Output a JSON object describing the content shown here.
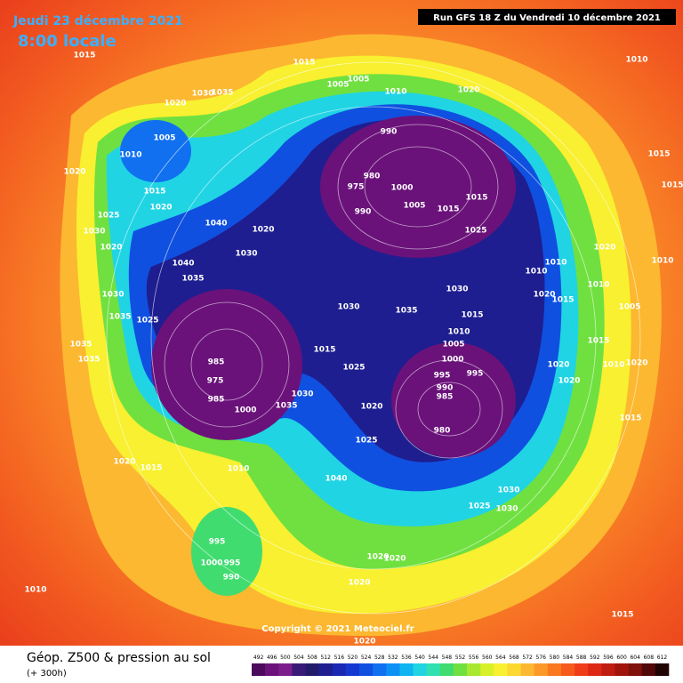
{
  "header": {
    "date": "Jeudi 23 décembre 2021",
    "time": "8:00 locale",
    "run": "Run GFS 18 Z du Vendredi 10 décembre 2021"
  },
  "footer": {
    "copyright": "Copyright © 2021 Meteociel.fr",
    "title": "Géop. Z500 & pression au sol",
    "lead": "(+ 300h)"
  },
  "pressure_labels": [
    1015,
    1015,
    1005,
    1005,
    1010,
    1020,
    1010,
    1020,
    1030,
    1035,
    1005,
    1010,
    990,
    1020,
    1015,
    1020,
    980,
    975,
    1000,
    990,
    1005,
    1015,
    1015,
    1015,
    1015,
    1025,
    1030,
    1020,
    1040,
    1020,
    1030,
    1025,
    1020,
    1040,
    1035,
    1010,
    1010,
    1010,
    1030,
    1020,
    1015,
    1010,
    1030,
    1030,
    1035,
    1035,
    1025,
    1015,
    1005,
    1010,
    1005,
    1015,
    985,
    1035,
    1035,
    1000,
    995,
    995,
    1025,
    975,
    990,
    985,
    1020,
    1020,
    1015,
    1010,
    1020,
    985,
    1000,
    1030,
    1035,
    1020,
    980,
    1015,
    1025,
    1020,
    1015,
    1010,
    1040,
    1030,
    1025,
    1030,
    995,
    1000,
    995,
    990,
    1020,
    1020,
    1020,
    1010,
    1015,
    1020
  ],
  "colorbar": {
    "ticks": [
      492,
      496,
      500,
      504,
      508,
      512,
      516,
      520,
      524,
      528,
      532,
      536,
      540,
      544,
      548,
      552,
      556,
      560,
      564,
      568,
      572,
      576,
      580,
      584,
      588,
      592,
      596,
      600,
      604,
      608,
      612
    ],
    "colors": [
      "#4b0a5c",
      "#6a127a",
      "#7b1e8c",
      "#3a1a78",
      "#241a6c",
      "#1e1e90",
      "#1a28b4",
      "#1438d0",
      "#1050e0",
      "#1070f0",
      "#0c90f4",
      "#10b4f0",
      "#20d4e4",
      "#30e0b0",
      "#40dc70",
      "#70e040",
      "#a8e830",
      "#d8f028",
      "#f8f030",
      "#fcd830",
      "#fcb830",
      "#fc9828",
      "#fa7820",
      "#f65a1c",
      "#f03c18",
      "#dc2814",
      "#c01c10",
      "#a0140c",
      "#80100a",
      "#500808",
      "#200404"
    ]
  }
}
